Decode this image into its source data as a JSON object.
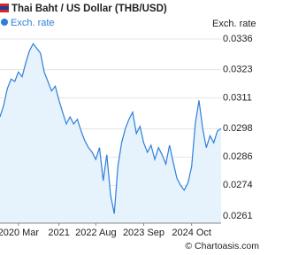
{
  "chart_data": {
    "type": "line",
    "title": "Thai Baht / US Dollar (THB/USD)",
    "y_axis_label": "Exch. rate",
    "watermark": "© Chartoasis.com",
    "categories": [
      null,
      null,
      null,
      null,
      null,
      "2020 Mar",
      null,
      null,
      null,
      null,
      null,
      null,
      null,
      null,
      null,
      null,
      "2021",
      null,
      null,
      null,
      null,
      null,
      null,
      null,
      null,
      null,
      "2022 Aug",
      null,
      null,
      null,
      null,
      null,
      null,
      null,
      null,
      null,
      null,
      null,
      null,
      "2023 Sep",
      null,
      null,
      null,
      null,
      null,
      null,
      null,
      null,
      null,
      null,
      null,
      null,
      "2024 Oct",
      null,
      null,
      null,
      null,
      null,
      null,
      null,
      null
    ],
    "series": [
      {
        "name": "Exch. rate",
        "color": "#2f7fd8",
        "values": [
          0.0303,
          0.0308,
          0.0315,
          0.0319,
          0.0318,
          0.0322,
          0.032,
          0.0326,
          0.0331,
          0.0334,
          0.0332,
          0.033,
          0.0322,
          0.0318,
          0.0314,
          0.0316,
          0.031,
          0.0305,
          0.03,
          0.0303,
          0.03,
          0.0302,
          0.0297,
          0.0293,
          0.029,
          0.0288,
          0.0285,
          0.029,
          0.0276,
          0.0287,
          0.027,
          0.0262,
          0.0282,
          0.0292,
          0.0298,
          0.0302,
          0.0305,
          0.0296,
          0.0299,
          0.0292,
          0.0288,
          0.0291,
          0.0285,
          0.029,
          0.0287,
          0.0283,
          0.0291,
          0.0284,
          0.0277,
          0.0274,
          0.0272,
          0.0275,
          0.0282,
          0.03,
          0.031,
          0.0298,
          0.029,
          0.0295,
          0.0292,
          0.0297,
          0.0298
        ]
      }
    ],
    "ylim": [
      0.0258,
      0.0342
    ],
    "yticks": [
      0.0261,
      0.0274,
      0.0286,
      0.0298,
      0.0311,
      0.0323,
      0.0336
    ],
    "grid": true,
    "area_color": "#e6f2fc"
  }
}
